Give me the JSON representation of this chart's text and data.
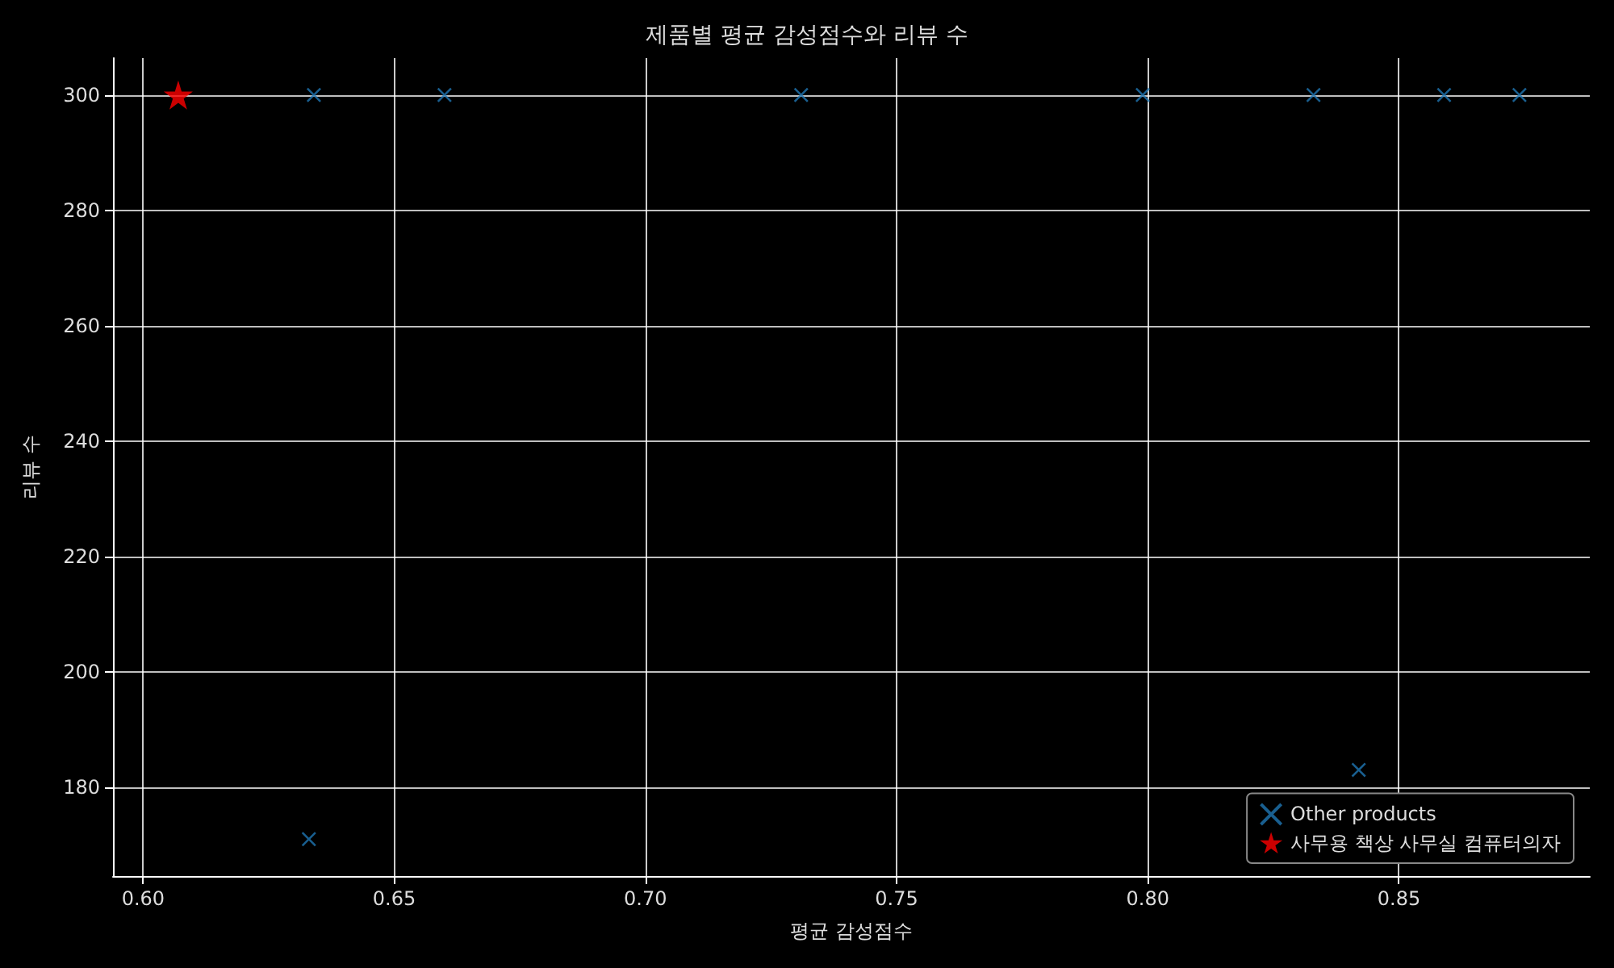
{
  "chart_data": {
    "type": "scatter",
    "title": "제품별 평균 감성점수와 리뷰 수",
    "xlabel": "평균 감성점수",
    "ylabel": "리뷰 수",
    "xlim": [
      0.594,
      0.888
    ],
    "ylim": [
      164.6,
      306.4
    ],
    "xticks": [
      {
        "value": 0.6,
        "label": "0.60"
      },
      {
        "value": 0.65,
        "label": "0.65"
      },
      {
        "value": 0.7,
        "label": "0.70"
      },
      {
        "value": 0.75,
        "label": "0.75"
      },
      {
        "value": 0.8,
        "label": "0.80"
      },
      {
        "value": 0.85,
        "label": "0.85"
      }
    ],
    "yticks": [
      180,
      200,
      220,
      240,
      260,
      280,
      300
    ],
    "grid": true,
    "legend": "bottom right",
    "series": [
      {
        "name": "Other products",
        "color": "#1f77b4",
        "marker": "cross",
        "x": [
          0.634,
          0.66,
          0.731,
          0.799,
          0.833,
          0.859,
          0.874,
          0.633,
          0.842
        ],
        "values": [
          300,
          300,
          300,
          300,
          300,
          300,
          300,
          171,
          183
        ]
      },
      {
        "name": "사무용 책상 사무실 컴퓨터의자",
        "color": "#ff0000",
        "marker": "star",
        "x": [
          0.607
        ],
        "values": [
          300
        ]
      }
    ]
  }
}
